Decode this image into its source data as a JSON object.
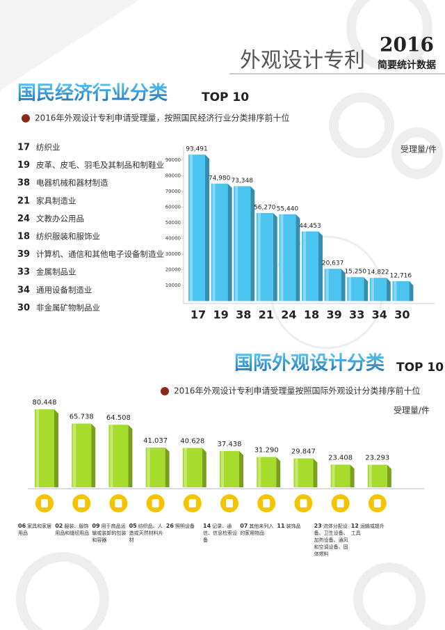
{
  "header": {
    "title": "外观设计专利",
    "year": "2016",
    "subtitle": "简要统计数据"
  },
  "chart_data": [
    {
      "type": "bar3d",
      "title": "国民经济行业分类",
      "badge": "TOP 10",
      "subtitle": "2016年外观设计专利申请受理量，按照国民经济行业分类排序前十位",
      "ylabel": "受理量/件",
      "categories": [
        "17",
        "19",
        "38",
        "21",
        "24",
        "18",
        "39",
        "33",
        "34",
        "30"
      ],
      "category_names": [
        "纺织业",
        "皮革、皮毛、羽毛及其制品和制鞋业",
        "电器机械和器材制造",
        "家具制造业",
        "文教办公用品",
        "纺织服装和服饰业",
        "计算机、通信和其他电子设备制造业",
        "金属制品业",
        "通用设备制造业",
        "非金属矿物制品业"
      ],
      "values": [
        93491,
        74980,
        73348,
        56270,
        55440,
        44453,
        20637,
        15250,
        14822,
        12716
      ],
      "value_labels": [
        "93,491",
        "74,980",
        "73,348",
        "56,270",
        "55,440",
        "44,453",
        "20,637",
        "15,250",
        "14,822",
        "12,716"
      ],
      "color": "#4cc4f0",
      "ylim": [
        0,
        100000
      ],
      "yticks": [
        10000,
        20000,
        30000,
        40000,
        50000,
        60000,
        70000,
        80000,
        90000
      ]
    },
    {
      "type": "bar3d",
      "title": "国际外观设计分类",
      "badge": "TOP 10",
      "subtitle": "2016年外观设计专利申请受理量按照国际外观设计分类排序前十位",
      "ylabel": "受理量/件",
      "categories": [
        "06",
        "02",
        "09",
        "05",
        "26",
        "14",
        "07",
        "11",
        "23",
        "12"
      ],
      "category_names": [
        "家具和家居用品",
        "服装、服饰用品和缝纫用品",
        "用于商品运输或装卸的包装和容器",
        "纺织品、人造或天然材料片材",
        "照明设备",
        "记录、通信、信息检索设备",
        "其他未列入的家用物品",
        "装饰品",
        "流体分配设备、卫生设备、加热设备、通风和空调设备、固体燃料",
        "运输或提升工具"
      ],
      "values": [
        80448,
        65738,
        64508,
        41037,
        40628,
        37438,
        31290,
        29847,
        23408,
        23293
      ],
      "value_labels": [
        "80.448",
        "65.738",
        "64.508",
        "41.037",
        "40.628",
        "37.438",
        "31.290",
        "29.847",
        "23.408",
        "23.293"
      ],
      "color": "#a8dc2c"
    }
  ]
}
